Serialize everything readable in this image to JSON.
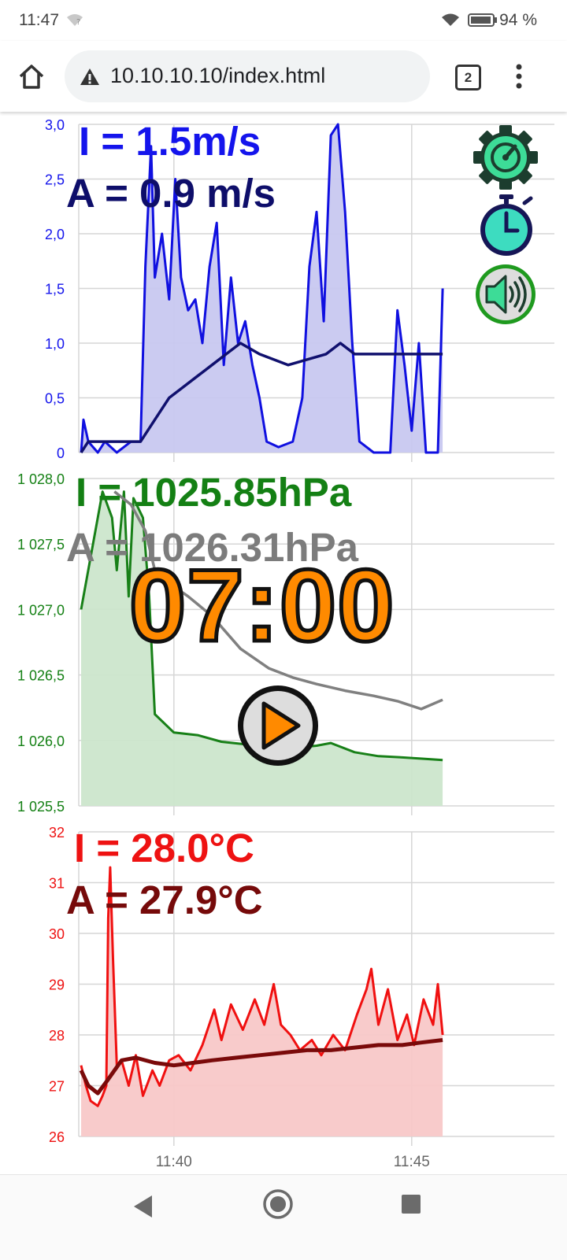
{
  "status_bar": {
    "time": "11:47",
    "battery_percent": "94 %",
    "icons": [
      "wifi-question-icon",
      "wifi-icon",
      "battery-icon"
    ]
  },
  "browser": {
    "url": "10.10.10.10/index.html",
    "tab_count": "2",
    "icons": [
      "home-icon",
      "warning-icon",
      "menu-dots-icon"
    ]
  },
  "colors": {
    "wind": "#1010e0",
    "wind_avg": "#10106e",
    "wind_fill": "#c8c8f0",
    "pressure": "#188018",
    "pressure_avg": "#808080",
    "pressure_fill": "#cce6cc",
    "temp": "#f01010",
    "temp_avg": "#7a0a0a",
    "temp_fill": "#f8c8c8",
    "timer": "#ff8800",
    "gear": "#3ddc97"
  },
  "overlays": {
    "wind_inst": "I = 1.5m/s",
    "wind_avg": "A = 0.9 m/s",
    "pressure_inst": "I = 1025.85hPa",
    "pressure_avg": "A = 1026.31hPa",
    "timer": "07:00",
    "temp_inst": "I = 28.0°C",
    "temp_avg": "A = 27.9°C"
  },
  "buttons": [
    "settings-gear-icon",
    "stopwatch-icon",
    "sound-icon",
    "play-icon"
  ],
  "chart_data": [
    {
      "type": "area",
      "ylim": [
        0,
        3
      ],
      "yticks": [
        "3,0",
        "2,5",
        "2,0",
        "1,5",
        "1,0",
        "0,5",
        "0"
      ],
      "xlim": [
        "11:38",
        "11:48"
      ],
      "series": [
        {
          "values": [
            [
              11.05,
              0
            ],
            [
              11.1,
              0.3
            ],
            [
              11.2,
              0.1
            ],
            [
              11.4,
              0
            ],
            [
              11.55,
              0.1
            ],
            [
              11.8,
              0
            ],
            [
              12.1,
              0.1
            ],
            [
              12.3,
              0.1
            ],
            [
              12.4,
              1.7
            ],
            [
              12.52,
              2.8
            ],
            [
              12.6,
              1.6
            ],
            [
              12.75,
              2.0
            ],
            [
              12.9,
              1.4
            ],
            [
              13.03,
              2.5
            ],
            [
              13.15,
              1.6
            ],
            [
              13.3,
              1.3
            ],
            [
              13.45,
              1.4
            ],
            [
              13.6,
              1.0
            ],
            [
              13.75,
              1.7
            ],
            [
              13.9,
              2.1
            ],
            [
              14.05,
              0.8
            ],
            [
              14.2,
              1.6
            ],
            [
              14.35,
              1.0
            ],
            [
              14.5,
              1.2
            ],
            [
              14.65,
              0.8
            ],
            [
              14.8,
              0.5
            ],
            [
              14.95,
              0.1
            ],
            [
              15.2,
              0.05
            ],
            [
              15.5,
              0.1
            ],
            [
              15.7,
              0.5
            ],
            [
              15.85,
              1.7
            ],
            [
              16.0,
              2.2
            ],
            [
              16.15,
              1.2
            ],
            [
              16.3,
              2.9
            ],
            [
              16.45,
              3.0
            ],
            [
              16.6,
              2.2
            ],
            [
              16.75,
              1.0
            ],
            [
              16.9,
              0.1
            ],
            [
              17.2,
              0
            ],
            [
              17.55,
              0
            ],
            [
              17.7,
              1.3
            ],
            [
              17.85,
              0.8
            ],
            [
              18.0,
              0.2
            ],
            [
              18.15,
              1.0
            ],
            [
              18.3,
              0
            ],
            [
              18.55,
              0
            ],
            [
              18.65,
              1.5
            ]
          ]
        },
        {
          "values": [
            [
              11.05,
              0
            ],
            [
              11.2,
              0.1
            ],
            [
              11.8,
              0.1
            ],
            [
              12.3,
              0.1
            ],
            [
              12.6,
              0.3
            ],
            [
              12.9,
              0.5
            ],
            [
              13.2,
              0.6
            ],
            [
              13.5,
              0.7
            ],
            [
              13.8,
              0.8
            ],
            [
              14.1,
              0.9
            ],
            [
              14.4,
              1.0
            ],
            [
              14.8,
              0.9
            ],
            [
              15.4,
              0.8
            ],
            [
              16.2,
              0.9
            ],
            [
              16.5,
              1.0
            ],
            [
              16.8,
              0.9
            ],
            [
              18.65,
              0.9
            ]
          ]
        }
      ]
    },
    {
      "type": "area",
      "ylim": [
        1025.5,
        1028.0
      ],
      "yticks": [
        "1 028,0",
        "1 027,5",
        "1 027,0",
        "1 026,5",
        "1 026,0",
        "1 025,5"
      ],
      "xlim": [
        "11:38",
        "11:48"
      ],
      "series": [
        {
          "values": [
            [
              11.05,
              1027.0
            ],
            [
              11.5,
              1027.9
            ],
            [
              11.7,
              1027.7
            ],
            [
              11.8,
              1027.3
            ],
            [
              11.95,
              1027.9
            ],
            [
              12.05,
              1027.1
            ],
            [
              12.15,
              1027.85
            ],
            [
              12.35,
              1027.7
            ],
            [
              12.48,
              1027.1
            ],
            [
              12.6,
              1026.2
            ],
            [
              13.0,
              1026.06
            ],
            [
              13.5,
              1026.04
            ],
            [
              14.0,
              1025.99
            ],
            [
              14.5,
              1025.97
            ],
            [
              15.0,
              1025.91
            ],
            [
              15.5,
              1025.94
            ],
            [
              16.0,
              1025.96
            ],
            [
              16.3,
              1025.98
            ],
            [
              16.8,
              1025.91
            ],
            [
              17.3,
              1025.88
            ],
            [
              17.8,
              1025.87
            ],
            [
              18.25,
              1025.86
            ],
            [
              18.65,
              1025.85
            ]
          ]
        },
        {
          "values": [
            [
              11.75,
              1027.9
            ],
            [
              12.1,
              1027.8
            ],
            [
              12.4,
              1027.6
            ],
            [
              12.6,
              1027.3
            ],
            [
              12.9,
              1027.2
            ],
            [
              13.3,
              1027.1
            ],
            [
              13.8,
              1026.95
            ],
            [
              14.4,
              1026.7
            ],
            [
              15.0,
              1026.55
            ],
            [
              15.5,
              1026.48
            ],
            [
              16.0,
              1026.43
            ],
            [
              16.6,
              1026.38
            ],
            [
              17.2,
              1026.34
            ],
            [
              17.7,
              1026.3
            ],
            [
              18.2,
              1026.24
            ],
            [
              18.65,
              1026.31
            ]
          ]
        }
      ]
    },
    {
      "type": "area",
      "ylim": [
        26,
        32
      ],
      "yticks": [
        "32",
        "31",
        "30",
        "29",
        "28",
        "27",
        "26"
      ],
      "xticks": [
        "11:40",
        "11:45"
      ],
      "xlim": [
        "11:38",
        "11:48"
      ],
      "series": [
        {
          "values": [
            [
              11.05,
              27.4
            ],
            [
              11.15,
              27.0
            ],
            [
              11.25,
              26.7
            ],
            [
              11.4,
              26.6
            ],
            [
              11.5,
              26.8
            ],
            [
              11.58,
              27.0
            ],
            [
              11.62,
              30.3
            ],
            [
              11.66,
              31.3
            ],
            [
              11.72,
              29.5
            ],
            [
              11.8,
              27.4
            ],
            [
              11.9,
              27.5
            ],
            [
              12.05,
              27.0
            ],
            [
              12.2,
              27.6
            ],
            [
              12.35,
              26.8
            ],
            [
              12.55,
              27.3
            ],
            [
              12.7,
              27.0
            ],
            [
              12.9,
              27.5
            ],
            [
              13.1,
              27.6
            ],
            [
              13.35,
              27.3
            ],
            [
              13.6,
              27.8
            ],
            [
              13.85,
              28.5
            ],
            [
              14.0,
              27.9
            ],
            [
              14.2,
              28.6
            ],
            [
              14.45,
              28.1
            ],
            [
              14.7,
              28.7
            ],
            [
              14.9,
              28.2
            ],
            [
              15.1,
              29.0
            ],
            [
              15.25,
              28.2
            ],
            [
              15.45,
              28.0
            ],
            [
              15.65,
              27.7
            ],
            [
              15.9,
              27.9
            ],
            [
              16.1,
              27.6
            ],
            [
              16.35,
              28.0
            ],
            [
              16.6,
              27.7
            ],
            [
              16.85,
              28.4
            ],
            [
              17.05,
              28.9
            ],
            [
              17.15,
              29.3
            ],
            [
              17.3,
              28.2
            ],
            [
              17.5,
              28.9
            ],
            [
              17.7,
              27.9
            ],
            [
              17.9,
              28.4
            ],
            [
              18.05,
              27.8
            ],
            [
              18.25,
              28.7
            ],
            [
              18.45,
              28.2
            ],
            [
              18.55,
              29.0
            ],
            [
              18.65,
              28.0
            ]
          ]
        },
        {
          "values": [
            [
              11.05,
              27.3
            ],
            [
              11.2,
              27.0
            ],
            [
              11.4,
              26.85
            ],
            [
              11.6,
              27.1
            ],
            [
              11.9,
              27.5
            ],
            [
              12.2,
              27.55
            ],
            [
              12.6,
              27.45
            ],
            [
              13.0,
              27.4
            ],
            [
              13.4,
              27.45
            ],
            [
              13.8,
              27.5
            ],
            [
              14.3,
              27.55
            ],
            [
              14.8,
              27.6
            ],
            [
              15.3,
              27.65
            ],
            [
              15.8,
              27.7
            ],
            [
              16.3,
              27.7
            ],
            [
              16.8,
              27.75
            ],
            [
              17.3,
              27.8
            ],
            [
              17.8,
              27.8
            ],
            [
              18.2,
              27.85
            ],
            [
              18.65,
              27.9
            ]
          ]
        }
      ]
    }
  ]
}
